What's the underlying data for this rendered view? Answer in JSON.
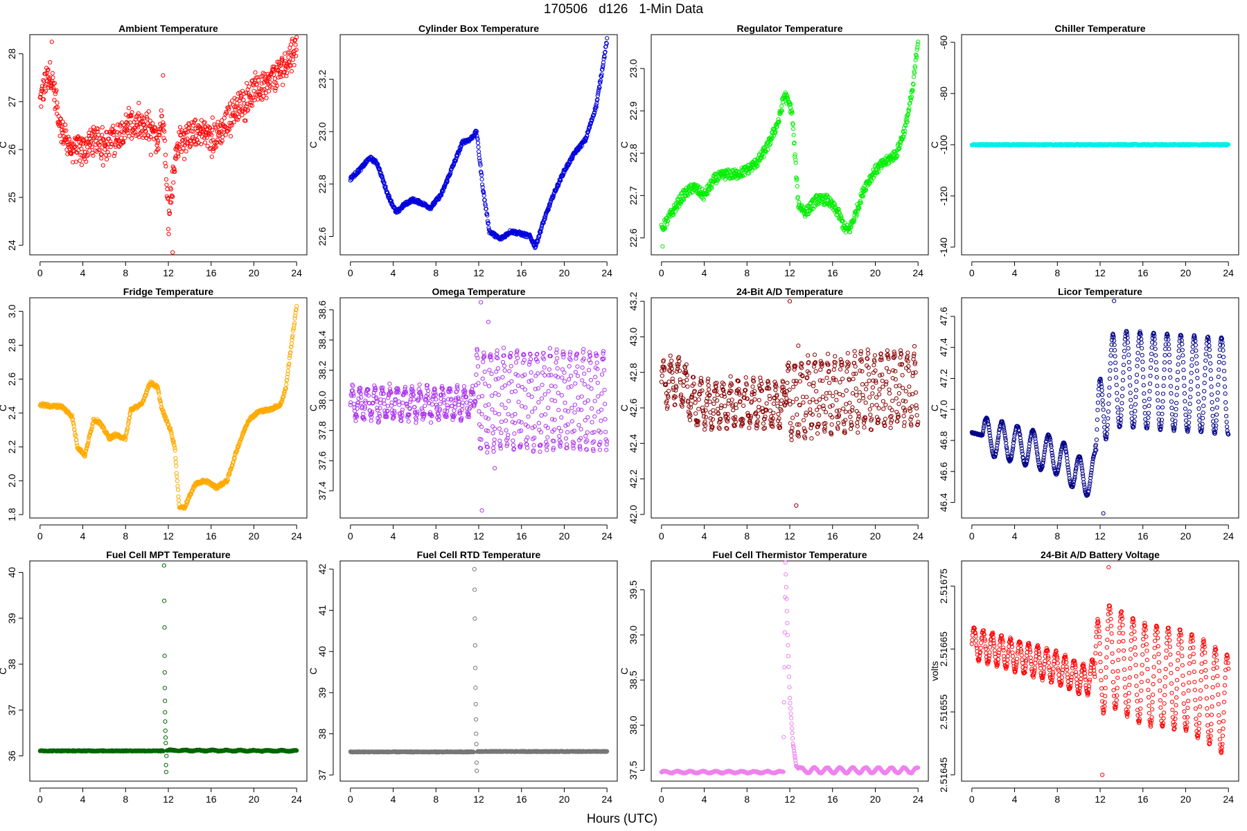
{
  "figure": {
    "title": "170506   d126   1-Min Data",
    "xlabel": "Hours (UTC)"
  },
  "chart_data": [
    {
      "type": "scatter",
      "title": "Ambient Temperature",
      "ylabel": "C",
      "color": "#ff0000",
      "xlim": [
        -0.96,
        24.96
      ],
      "xticks": [
        0,
        4,
        8,
        12,
        16,
        20,
        24
      ],
      "ylim": [
        23.8,
        28.4
      ],
      "yticks": [
        24,
        25,
        26,
        27,
        28
      ],
      "ytick_labels": [
        "24",
        "25",
        "26",
        "27",
        "28"
      ],
      "series": [
        {
          "name": "Ambient Temperature",
          "x": [
            0,
            0.5,
            1,
            1.5,
            2,
            3,
            4,
            5,
            6,
            7,
            8,
            9,
            10,
            11,
            11.5,
            11.8,
            12,
            12.3,
            12.6,
            13,
            14,
            15,
            16,
            17,
            18,
            19,
            20,
            21,
            22,
            23,
            24
          ],
          "y": [
            27,
            27.4,
            27.6,
            27,
            26.4,
            26,
            26,
            26.2,
            26.1,
            26.2,
            26.5,
            26.5,
            26.4,
            26.2,
            26.8,
            25.5,
            24.6,
            25.2,
            25.7,
            26.2,
            26.3,
            26.4,
            26.2,
            26.4,
            26.8,
            27,
            27.2,
            27.3,
            27.5,
            27.8,
            28.2
          ],
          "noise": 0.28,
          "extremes": [
            [
              1.1,
              28.25
            ],
            [
              12.4,
              23.85
            ],
            [
              11.5,
              27.55
            ]
          ]
        }
      ]
    },
    {
      "type": "scatter",
      "title": "Cylinder Box Temperature",
      "ylabel": "C",
      "color": "#0000dd",
      "xlim": [
        -0.96,
        24.96
      ],
      "xticks": [
        0,
        4,
        8,
        12,
        16,
        20,
        24
      ],
      "ylim": [
        22.53,
        23.37
      ],
      "yticks": [
        22.6,
        22.8,
        23.0,
        23.2
      ],
      "ytick_labels": [
        "22.6",
        "22.8",
        "23.0",
        "23.2"
      ],
      "series": [
        {
          "name": "Cylinder Box Temperature",
          "x": [
            0,
            1,
            1.8,
            2.5,
            3.5,
            4.3,
            5,
            5.8,
            6.5,
            7.5,
            8.5,
            9.5,
            10.5,
            11.2,
            11.8,
            12.4,
            13,
            14,
            15,
            16,
            16.8,
            17.3,
            18,
            19,
            20,
            21,
            22,
            23,
            24
          ],
          "y": [
            22.82,
            22.86,
            22.9,
            22.88,
            22.76,
            22.69,
            22.72,
            22.74,
            22.73,
            22.71,
            22.76,
            22.86,
            22.96,
            22.97,
            23.0,
            22.78,
            22.62,
            22.59,
            22.62,
            22.61,
            22.6,
            22.56,
            22.65,
            22.76,
            22.85,
            22.92,
            22.97,
            23.1,
            23.35
          ],
          "noise": 0.007
        }
      ]
    },
    {
      "type": "scatter",
      "title": "Regulator Temperature",
      "ylabel": "C",
      "color": "#00ee00",
      "xlim": [
        -0.96,
        24.96
      ],
      "xticks": [
        0,
        4,
        8,
        12,
        16,
        20,
        24
      ],
      "ylim": [
        22.56,
        23.08
      ],
      "yticks": [
        22.6,
        22.7,
        22.8,
        22.9,
        23.0
      ],
      "ytick_labels": [
        "22.6",
        "22.7",
        "22.8",
        "22.9",
        "23.0"
      ],
      "series": [
        {
          "name": "Regulator Temperature",
          "x": [
            0,
            1,
            2,
            3,
            4,
            5,
            6,
            7,
            8,
            9,
            10,
            11,
            11.5,
            12.2,
            12.8,
            13.5,
            14.5,
            15.5,
            16.5,
            17.2,
            17.6,
            18.2,
            19,
            20,
            21,
            22,
            22.8,
            23.5,
            24
          ],
          "y": [
            22.62,
            22.66,
            22.7,
            22.72,
            22.7,
            22.74,
            22.75,
            22.75,
            22.76,
            22.78,
            22.82,
            22.88,
            22.94,
            22.9,
            22.68,
            22.66,
            22.69,
            22.69,
            22.66,
            22.62,
            22.62,
            22.66,
            22.72,
            22.76,
            22.78,
            22.8,
            22.86,
            22.95,
            23.07
          ],
          "noise": 0.012,
          "extremes": [
            [
              0.1,
              22.58
            ]
          ]
        }
      ]
    },
    {
      "type": "scatter",
      "title": "Chiller Temperature",
      "ylabel": "C",
      "color": "#00eeee",
      "xlim": [
        -0.96,
        24.96
      ],
      "xticks": [
        0,
        4,
        8,
        12,
        16,
        20,
        24
      ],
      "ylim": [
        -143,
        -57
      ],
      "yticks": [
        -140,
        -120,
        -100,
        -80,
        -60
      ],
      "ytick_labels": [
        "-140",
        "-120",
        "-100",
        "-80",
        "-60"
      ],
      "series": [
        {
          "name": "Chiller Temperature",
          "x": [
            0,
            11.2,
            11.6,
            24
          ],
          "y": [
            -100,
            -100,
            -100,
            -100
          ],
          "noise": 0.25
        }
      ]
    },
    {
      "type": "scatter",
      "title": "Fridge Temperature",
      "ylabel": "C",
      "color": "#ffaa00",
      "xlim": [
        -0.96,
        24.96
      ],
      "xticks": [
        0,
        4,
        8,
        12,
        16,
        20,
        24
      ],
      "ylim": [
        1.78,
        3.08
      ],
      "yticks": [
        1.8,
        2.0,
        2.2,
        2.4,
        2.6,
        2.8,
        3.0
      ],
      "ytick_labels": [
        "1.8",
        "2.0",
        "2.2",
        "2.4",
        "2.6",
        "2.8",
        "3.0"
      ],
      "series": [
        {
          "name": "Fridge Temperature",
          "x": [
            0,
            1,
            2,
            3,
            3.5,
            4.2,
            5,
            5.5,
            6.5,
            7,
            8,
            8.5,
            9.5,
            10.3,
            11,
            11.4,
            12.2,
            12.6,
            13,
            13.5,
            14.5,
            15.5,
            16.5,
            17.5,
            18.5,
            19.5,
            20.5,
            21.5,
            22.5,
            23,
            23.5,
            24
          ],
          "y": [
            2.45,
            2.44,
            2.44,
            2.38,
            2.2,
            2.15,
            2.36,
            2.35,
            2.25,
            2.27,
            2.25,
            2.42,
            2.45,
            2.58,
            2.55,
            2.42,
            2.3,
            2.2,
            1.85,
            1.84,
            1.98,
            2.0,
            1.96,
            2.0,
            2.2,
            2.36,
            2.41,
            2.42,
            2.45,
            2.55,
            2.8,
            3.03
          ],
          "noise": 0.01
        }
      ]
    },
    {
      "type": "scatter",
      "title": "Omega Temperature",
      "ylabel": "C",
      "color": "#aa33ee",
      "xlim": [
        -0.96,
        24.96
      ],
      "xticks": [
        0,
        4,
        8,
        12,
        16,
        20,
        24
      ],
      "ylim": [
        37.22,
        38.68
      ],
      "yticks": [
        37.4,
        37.6,
        37.8,
        38.0,
        38.2,
        38.4,
        38.6
      ],
      "ytick_labels": [
        "37.4",
        "37.6",
        "37.8",
        "38.0",
        "38.2",
        "38.4",
        "38.6"
      ],
      "series": [
        {
          "name": "Omega Temperature",
          "x": [
            0,
            11.5,
            11.7,
            24
          ],
          "y": [
            37.98,
            37.98,
            38.0,
            38.0
          ],
          "osc": [
            {
              "from": 0,
              "to": 11.5,
              "amp": 0.1,
              "period": 0.7
            },
            {
              "from": 11.7,
              "to": 24,
              "amp": 0.32,
              "period": 0.62
            }
          ],
          "noise": 0.03,
          "extremes": [
            [
              12.2,
              38.65
            ],
            [
              12.3,
              37.27
            ],
            [
              12.9,
              38.52
            ],
            [
              13.5,
              37.55
            ]
          ]
        }
      ]
    },
    {
      "type": "scatter",
      "title": "24-Bit A/D Temperature",
      "ylabel": "C",
      "color": "#880000",
      "xlim": [
        -0.96,
        24.96
      ],
      "xticks": [
        0,
        4,
        8,
        12,
        16,
        20,
        24
      ],
      "ylim": [
        41.98,
        43.22
      ],
      "yticks": [
        42.0,
        42.2,
        42.4,
        42.6,
        42.8,
        43.0,
        43.2
      ],
      "ytick_labels": [
        "42.0",
        "42.2",
        "42.4",
        "42.6",
        "42.8",
        "43.0",
        "43.2"
      ],
      "series": [
        {
          "name": "24-Bit A/D Temperature",
          "x": [
            0,
            2,
            3,
            11.5,
            11.7,
            24
          ],
          "y": [
            42.75,
            42.75,
            42.62,
            42.62,
            42.65,
            42.72
          ],
          "osc": [
            {
              "from": 0,
              "to": 11.5,
              "amp": 0.12,
              "period": 0.7
            },
            {
              "from": 11.7,
              "to": 24,
              "amp": 0.2,
              "period": 0.62
            }
          ],
          "noise": 0.04,
          "extremes": [
            [
              12.0,
              43.2
            ],
            [
              12.6,
              42.05
            ],
            [
              12.8,
              42.95
            ]
          ]
        }
      ]
    },
    {
      "type": "scatter",
      "title": "Licor Temperature",
      "ylabel": "C",
      "color": "#000088",
      "xlim": [
        -0.96,
        24.96
      ],
      "xticks": [
        0,
        4,
        8,
        12,
        16,
        20,
        24
      ],
      "ylim": [
        46.3,
        47.72
      ],
      "yticks": [
        46.4,
        46.6,
        46.8,
        47.0,
        47.2,
        47.4,
        47.6
      ],
      "ytick_labels": [
        "46.4",
        "46.6",
        "46.8",
        "47.0",
        "47.2",
        "47.4",
        "47.6"
      ],
      "series": [
        {
          "name": "Licor Temperature",
          "x": [
            0,
            4,
            8,
            10.5,
            11.5,
            12.3,
            13.5,
            24
          ],
          "y": [
            46.85,
            46.78,
            46.7,
            46.55,
            46.6,
            47.1,
            47.2,
            47.15
          ],
          "osc": [
            {
              "from": 1,
              "to": 11.6,
              "amp": 0.12,
              "period": 1.45
            },
            {
              "from": 11.6,
              "to": 24,
              "amp": 0.31,
              "period": 1.27
            }
          ],
          "noise": 0.004,
          "extremes": [
            [
              12.3,
              46.33
            ],
            [
              13.3,
              47.7
            ]
          ]
        }
      ]
    },
    {
      "type": "scatter",
      "title": "Fuel Cell MPT Temperature",
      "ylabel": "C",
      "color": "#006600",
      "xlim": [
        -0.96,
        24.96
      ],
      "xticks": [
        0,
        4,
        8,
        12,
        16,
        20,
        24
      ],
      "ylim": [
        35.45,
        40.25
      ],
      "yticks": [
        36,
        37,
        38,
        39,
        40
      ],
      "ytick_labels": [
        "36",
        "37",
        "38",
        "39",
        "40"
      ],
      "series": [
        {
          "name": "Fuel Cell MPT Temperature",
          "x": [
            0,
            11.5,
            12,
            24
          ],
          "y": [
            36.11,
            36.11,
            36.12,
            36.11
          ],
          "osc": [
            {
              "from": 11.9,
              "to": 24,
              "amp": 0.01,
              "period": 1.3
            }
          ],
          "noise": 0.01,
          "gap": [
            11.55,
            11.85
          ],
          "spike": {
            "x": [
              11.6,
              11.62,
              11.64,
              11.65,
              11.66,
              11.67,
              11.68,
              11.69,
              11.7,
              11.72,
              11.74,
              11.76,
              11.78,
              11.8,
              11.82
            ],
            "y": [
              40.15,
              39.38,
              38.8,
              38.18,
              37.82,
              37.48,
              37.2,
              36.95,
              36.75,
              36.55,
              36.4,
              36.28,
              35.8,
              35.65,
              36.0
            ]
          }
        }
      ]
    },
    {
      "type": "scatter",
      "title": "Fuel Cell RTD Temperature",
      "ylabel": "C",
      "color": "#777777",
      "xlim": [
        -0.96,
        24.96
      ],
      "xticks": [
        0,
        4,
        8,
        12,
        16,
        20,
        24
      ],
      "ylim": [
        36.85,
        42.2
      ],
      "yticks": [
        37,
        38,
        39,
        40,
        41,
        42
      ],
      "ytick_labels": [
        "37",
        "38",
        "39",
        "40",
        "41",
        "42"
      ],
      "series": [
        {
          "name": "Fuel Cell RTD Temperature",
          "x": [
            0,
            11.5,
            12,
            24
          ],
          "y": [
            37.56,
            37.56,
            37.57,
            37.57
          ],
          "noise": 0.01,
          "gap": [
            11.55,
            11.85
          ],
          "spike": {
            "x": [
              11.6,
              11.62,
              11.64,
              11.66,
              11.68,
              11.7,
              11.72,
              11.74,
              11.76,
              11.78,
              11.8,
              11.82
            ],
            "y": [
              42.0,
              41.5,
              40.8,
              40.15,
              39.6,
              39.12,
              38.72,
              38.35,
              38.0,
              37.75,
              37.3,
              37.1
            ]
          }
        }
      ]
    },
    {
      "type": "scatter",
      "title": "Fuel Cell Thermistor Temperature",
      "ylabel": "C",
      "color": "#ee82ee",
      "xlim": [
        -0.96,
        24.96
      ],
      "xticks": [
        0,
        4,
        8,
        12,
        16,
        20,
        24
      ],
      "ylim": [
        37.38,
        39.82
      ],
      "yticks": [
        37.5,
        38.0,
        38.5,
        39.0,
        39.5
      ],
      "ytick_labels": [
        "37.5",
        "38.0",
        "38.5",
        "39.0",
        "39.5"
      ],
      "series": [
        {
          "name": "Fuel Cell Thermistor Temperature",
          "x": [
            0,
            11.4,
            11.6,
            11.8,
            12,
            12.3,
            12.6,
            13,
            24
          ],
          "y": [
            37.48,
            37.48,
            39.8,
            39.0,
            38.3,
            37.8,
            37.55,
            37.5,
            37.5
          ],
          "osc": [
            {
              "from": 0,
              "to": 11.4,
              "amp": 0.01,
              "period": 1.2
            },
            {
              "from": 12.8,
              "to": 24,
              "amp": 0.03,
              "period": 1.2
            }
          ],
          "noise": 0.005
        }
      ]
    },
    {
      "type": "scatter",
      "title": "24-Bit A/D Battery Voltage",
      "ylabel": "volts",
      "color": "#ff0000",
      "xlim": [
        -0.96,
        24.96
      ],
      "xticks": [
        0,
        4,
        8,
        12,
        16,
        20,
        24
      ],
      "ylim": [
        2.51644,
        2.51679
      ],
      "yticks": [
        2.51645,
        2.51655,
        2.51665,
        2.51675
      ],
      "ytick_labels": [
        "2.51645",
        "2.51655",
        "2.51665",
        "2.51675"
      ],
      "series": [
        {
          "name": "24-Bit A/D Battery Voltage",
          "x": [
            0,
            4,
            8,
            10.5,
            11.5,
            12.8,
            16,
            20,
            24
          ],
          "y": [
            2.51666,
            2.51664,
            2.51662,
            2.5166,
            2.51661,
            2.51664,
            2.51661,
            2.5166,
            2.51656
          ],
          "osc": [
            {
              "from": 0,
              "to": 11.5,
              "amp": 2.5e-05,
              "period": 0.85
            },
            {
              "from": 11.5,
              "to": 24,
              "amp": 8e-05,
              "period": 1.1
            }
          ],
          "noise": 2e-06,
          "extremes": [
            [
              12.2,
              2.51645
            ],
            [
              12.8,
              2.51678
            ]
          ]
        }
      ]
    }
  ]
}
